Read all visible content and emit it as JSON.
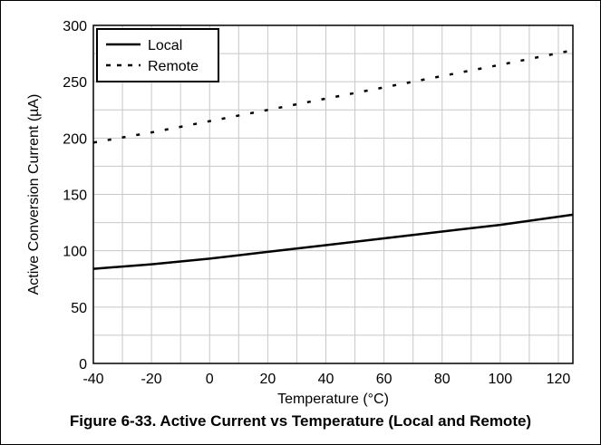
{
  "caption": "Figure 6-33. Active Current vs Temperature (Local and Remote)",
  "chart_data": {
    "type": "line",
    "title": "",
    "xlabel": "Temperature (°C)",
    "ylabel": "Active Conversion Current (µA)",
    "xlim": [
      -40,
      125
    ],
    "ylim": [
      0,
      300
    ],
    "x_ticks": [
      -40,
      -20,
      0,
      20,
      40,
      60,
      80,
      100,
      120
    ],
    "y_ticks": [
      0,
      50,
      100,
      150,
      200,
      250,
      300
    ],
    "grid": true,
    "legend_position": "top-left",
    "series": [
      {
        "name": "Local",
        "style": "solid",
        "color": "#000000",
        "x": [
          -40,
          -20,
          0,
          20,
          40,
          60,
          80,
          100,
          125
        ],
        "y": [
          84,
          88,
          93,
          99,
          105,
          111,
          117,
          123,
          132
        ]
      },
      {
        "name": "Remote",
        "style": "dotted",
        "color": "#000000",
        "x": [
          -40,
          -20,
          0,
          20,
          40,
          60,
          80,
          100,
          125
        ],
        "y": [
          196,
          205,
          215,
          225,
          235,
          245,
          255,
          265,
          278
        ]
      }
    ]
  }
}
